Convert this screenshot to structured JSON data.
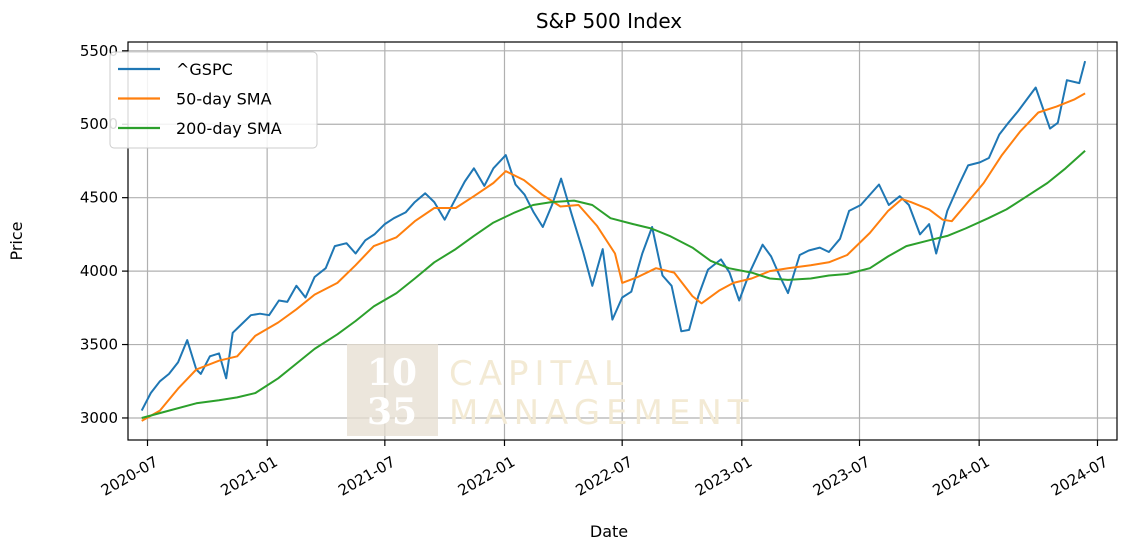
{
  "chart_data": {
    "type": "line",
    "title": "S&P 500 Index",
    "xlabel": "Date",
    "ylabel": "Price",
    "xlim": [
      "2020-06-01",
      "2024-07-31"
    ],
    "ylim": [
      2850,
      5560
    ],
    "grid": true,
    "legend_position": "top-left",
    "x_ticks": [
      "2020-07",
      "2021-01",
      "2021-07",
      "2022-01",
      "2022-07",
      "2023-01",
      "2023-07",
      "2024-01",
      "2024-07"
    ],
    "y_ticks": [
      3000,
      3500,
      4000,
      4500,
      5000,
      5500
    ],
    "series": [
      {
        "name": "^GSPC",
        "color": "#1f77b4",
        "x": [
          "2020-06-22",
          "2020-07-06",
          "2020-07-20",
          "2020-08-03",
          "2020-08-17",
          "2020-08-31",
          "2020-09-14",
          "2020-09-21",
          "2020-10-05",
          "2020-10-19",
          "2020-10-30",
          "2020-11-09",
          "2020-11-23",
          "2020-12-07",
          "2020-12-21",
          "2021-01-04",
          "2021-01-19",
          "2021-02-01",
          "2021-02-15",
          "2021-03-01",
          "2021-03-15",
          "2021-04-01",
          "2021-04-15",
          "2021-05-03",
          "2021-05-17",
          "2021-06-01",
          "2021-06-15",
          "2021-07-01",
          "2021-07-15",
          "2021-08-02",
          "2021-08-16",
          "2021-09-01",
          "2021-09-15",
          "2021-10-01",
          "2021-10-15",
          "2021-11-01",
          "2021-11-15",
          "2021-12-01",
          "2021-12-15",
          "2022-01-03",
          "2022-01-18",
          "2022-02-01",
          "2022-02-15",
          "2022-03-01",
          "2022-03-15",
          "2022-03-29",
          "2022-04-14",
          "2022-05-02",
          "2022-05-16",
          "2022-06-01",
          "2022-06-16",
          "2022-07-01",
          "2022-07-15",
          "2022-08-01",
          "2022-08-16",
          "2022-09-01",
          "2022-09-15",
          "2022-09-30",
          "2022-10-12",
          "2022-10-26",
          "2022-11-10",
          "2022-11-30",
          "2022-12-13",
          "2022-12-28",
          "2023-01-13",
          "2023-02-02",
          "2023-02-15",
          "2023-03-01",
          "2023-03-13",
          "2023-03-31",
          "2023-04-14",
          "2023-05-01",
          "2023-05-15",
          "2023-06-01",
          "2023-06-15",
          "2023-07-03",
          "2023-07-31",
          "2023-08-15",
          "2023-09-01",
          "2023-09-15",
          "2023-10-02",
          "2023-10-16",
          "2023-10-27",
          "2023-11-13",
          "2023-12-01",
          "2023-12-15",
          "2024-01-02",
          "2024-01-16",
          "2024-02-01",
          "2024-02-15",
          "2024-03-01",
          "2024-03-28",
          "2024-04-19",
          "2024-05-01",
          "2024-05-15",
          "2024-06-03",
          "2024-06-12"
        ],
        "values": [
          3050,
          3170,
          3250,
          3300,
          3380,
          3530,
          3330,
          3300,
          3420,
          3440,
          3270,
          3580,
          3640,
          3700,
          3710,
          3700,
          3800,
          3790,
          3900,
          3820,
          3960,
          4020,
          4170,
          4190,
          4120,
          4210,
          4250,
          4320,
          4360,
          4400,
          4470,
          4530,
          4470,
          4350,
          4470,
          4610,
          4700,
          4580,
          4700,
          4790,
          4590,
          4520,
          4400,
          4300,
          4450,
          4630,
          4390,
          4130,
          3900,
          4150,
          3670,
          3820,
          3860,
          4120,
          4300,
          3970,
          3900,
          3590,
          3600,
          3830,
          4010,
          4080,
          3990,
          3800,
          3990,
          4180,
          4100,
          3960,
          3850,
          4110,
          4140,
          4160,
          4130,
          4220,
          4410,
          4450,
          4590,
          4450,
          4510,
          4450,
          4250,
          4320,
          4120,
          4410,
          4590,
          4720,
          4740,
          4770,
          4930,
          5010,
          5090,
          5250,
          4970,
          5010,
          5300,
          5280,
          5430
        ]
      },
      {
        "name": "50-day SMA",
        "color": "#ff7f0e",
        "x": [
          "2020-06-22",
          "2020-07-20",
          "2020-08-17",
          "2020-09-14",
          "2020-10-19",
          "2020-11-16",
          "2020-12-14",
          "2021-01-18",
          "2021-02-15",
          "2021-03-15",
          "2021-04-19",
          "2021-05-17",
          "2021-06-14",
          "2021-07-19",
          "2021-08-16",
          "2021-09-15",
          "2021-10-18",
          "2021-11-15",
          "2021-12-15",
          "2022-01-03",
          "2022-01-31",
          "2022-02-28",
          "2022-03-28",
          "2022-04-25",
          "2022-05-23",
          "2022-06-20",
          "2022-07-01",
          "2022-07-25",
          "2022-08-22",
          "2022-09-19",
          "2022-10-17",
          "2022-10-31",
          "2022-11-28",
          "2022-12-19",
          "2023-01-16",
          "2023-02-13",
          "2023-03-13",
          "2023-04-17",
          "2023-05-15",
          "2023-06-12",
          "2023-07-17",
          "2023-08-14",
          "2023-09-04",
          "2023-09-18",
          "2023-10-16",
          "2023-11-06",
          "2023-11-20",
          "2023-12-11",
          "2024-01-08",
          "2024-02-05",
          "2024-03-04",
          "2024-04-01",
          "2024-04-29",
          "2024-05-27",
          "2024-06-12"
        ],
        "values": [
          2980,
          3050,
          3200,
          3330,
          3390,
          3420,
          3560,
          3650,
          3740,
          3840,
          3920,
          4040,
          4170,
          4230,
          4340,
          4430,
          4430,
          4510,
          4600,
          4680,
          4620,
          4520,
          4440,
          4450,
          4310,
          4120,
          3920,
          3960,
          4020,
          3990,
          3830,
          3780,
          3870,
          3920,
          3950,
          4000,
          4020,
          4040,
          4060,
          4110,
          4260,
          4410,
          4490,
          4470,
          4420,
          4350,
          4340,
          4450,
          4600,
          4790,
          4950,
          5080,
          5120,
          5170,
          5210
        ]
      },
      {
        "name": "200-day SMA",
        "color": "#2ca02c",
        "x": [
          "2020-06-22",
          "2020-08-03",
          "2020-09-14",
          "2020-10-19",
          "2020-11-16",
          "2020-12-14",
          "2021-01-18",
          "2021-02-15",
          "2021-03-15",
          "2021-04-19",
          "2021-05-17",
          "2021-06-14",
          "2021-07-19",
          "2021-08-16",
          "2021-09-15",
          "2021-10-18",
          "2021-11-15",
          "2021-12-15",
          "2022-01-17",
          "2022-02-14",
          "2022-03-14",
          "2022-04-18",
          "2022-05-16",
          "2022-06-13",
          "2022-07-18",
          "2022-08-15",
          "2022-09-12",
          "2022-10-17",
          "2022-11-14",
          "2022-12-12",
          "2023-01-16",
          "2023-02-13",
          "2023-03-13",
          "2023-04-17",
          "2023-05-15",
          "2023-06-12",
          "2023-07-17",
          "2023-08-14",
          "2023-09-11",
          "2023-10-16",
          "2023-11-13",
          "2023-12-11",
          "2024-01-15",
          "2024-02-12",
          "2024-03-11",
          "2024-04-15",
          "2024-05-13",
          "2024-06-12"
        ],
        "values": [
          3000,
          3050,
          3100,
          3120,
          3140,
          3170,
          3270,
          3370,
          3470,
          3570,
          3660,
          3760,
          3850,
          3950,
          4060,
          4150,
          4240,
          4330,
          4400,
          4450,
          4470,
          4480,
          4450,
          4360,
          4320,
          4290,
          4240,
          4160,
          4070,
          4020,
          3990,
          3950,
          3940,
          3950,
          3970,
          3980,
          4020,
          4100,
          4170,
          4210,
          4240,
          4290,
          4360,
          4420,
          4500,
          4600,
          4700,
          4820
        ]
      }
    ]
  },
  "watermark": {
    "number_lines": [
      "10",
      "35"
    ],
    "text_lines": [
      "CAPITAL",
      "MANAGEMENT"
    ]
  }
}
